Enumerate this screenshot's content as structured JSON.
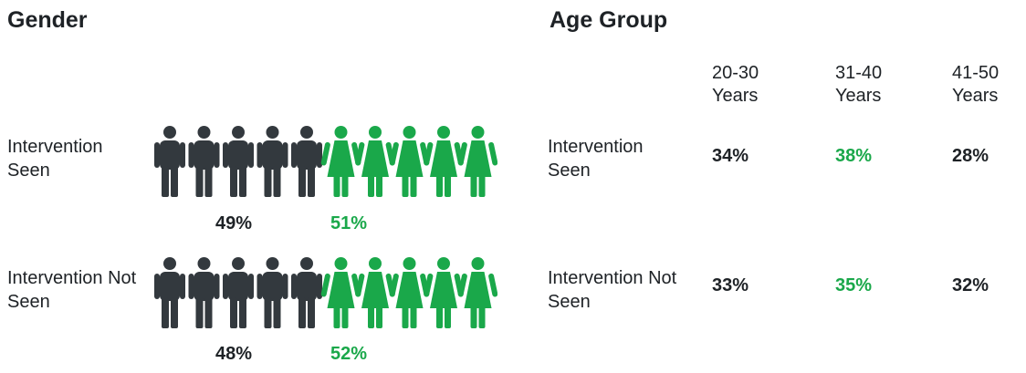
{
  "gender": {
    "title": "Gender",
    "rows": [
      {
        "label": "Intervention Seen",
        "male": "49%",
        "female": "51%"
      },
      {
        "label": "Intervention Not Seen",
        "male": "48%",
        "female": "52%"
      }
    ]
  },
  "age_group": {
    "title": "Age Group",
    "columns": [
      "20-30 Years",
      "31-40 Years",
      "41-50 Years"
    ],
    "rows": [
      {
        "label": "Intervention Seen",
        "values": [
          "34%",
          "38%",
          "28%"
        ]
      },
      {
        "label": "Intervention Not Seen",
        "values": [
          "33%",
          "35%",
          "32%"
        ]
      }
    ]
  }
}
